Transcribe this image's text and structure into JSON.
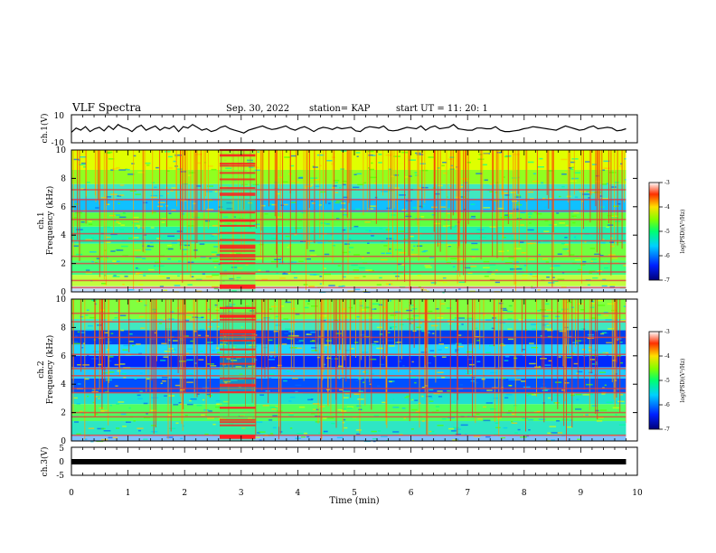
{
  "header": {
    "title": "VLF Spectra",
    "date": "Sep. 30, 2022",
    "station": "station= KAP",
    "start": "start  UT =   11: 20: 1"
  },
  "chart_data": [
    {
      "type": "line",
      "panel": "waveform-ch1",
      "ylabel": "ch.1(V)",
      "ylim": [
        -10,
        10
      ],
      "ytick_labels": [
        "10",
        "-10"
      ],
      "x_range_min": [
        0,
        9.8
      ],
      "series": [
        {
          "values": [
            -2.5,
            0.5,
            -1,
            1.5,
            -2,
            0,
            1,
            -1.5,
            2,
            -0.5,
            3,
            1,
            0,
            -2,
            1,
            2.5,
            -1,
            0.5,
            2,
            -1,
            1,
            0,
            2,
            -2,
            1.5,
            0.5,
            3,
            1,
            -1,
            0,
            -2,
            -1,
            1,
            2,
            0,
            -1,
            -2,
            -3,
            -1,
            0,
            1,
            2,
            0.5,
            -0.5,
            0,
            1,
            2,
            0,
            -1,
            0.5,
            1.5,
            0,
            -2,
            0,
            1,
            0.5,
            -0.5,
            1,
            0,
            0.5,
            1,
            -1.5,
            -2,
            0.5,
            1.5,
            1,
            0.5,
            2,
            -1,
            -1.5,
            -1,
            0,
            1,
            0.5,
            0,
            2,
            -1,
            1,
            2,
            0,
            0.5,
            1,
            3,
            0,
            -0.5,
            -1,
            -1,
            0.5,
            0.5,
            0,
            0,
            1.5,
            -1,
            -2,
            -2,
            -1.5,
            -1,
            0,
            0.5,
            1.5,
            1,
            0.5,
            0,
            -0.5,
            -1,
            0.5,
            2,
            1,
            0,
            -1,
            -0.5,
            1,
            2,
            0,
            0.5,
            1,
            0.5,
            -1.5,
            -1,
            0
          ]
        }
      ]
    },
    {
      "type": "heatmap",
      "panel": "spectrogram-ch1",
      "ylabel": "ch.1\nFrequency (kHz)",
      "ylim": [
        0,
        10
      ],
      "ytick_labels": [
        "0",
        "2",
        "4",
        "6",
        "8",
        "10"
      ],
      "colorbar": {
        "label": "log(PSD)(V²/Hz)",
        "range": [
          -7,
          -3
        ],
        "ticks": [
          "-3",
          "-4",
          "-5",
          "-6",
          "-7"
        ]
      },
      "strong_lines_khz": [
        0.3,
        0.8,
        1.4,
        2.0,
        2.5,
        3.6,
        4.1,
        5.1,
        5.7,
        6.5,
        7.2
      ],
      "burst_min": [
        2.62,
        3.25
      ]
    },
    {
      "type": "heatmap",
      "panel": "spectrogram-ch2",
      "ylabel": "ch.2\nFrequency (kHz)",
      "ylim": [
        0,
        10
      ],
      "ytick_labels": [
        "0",
        "2",
        "4",
        "6",
        "8",
        "10"
      ],
      "colorbar": {
        "label": "log(PSD)(V²/Hz)",
        "range": [
          -7,
          -3
        ],
        "ticks": [
          "-3",
          "-4",
          "-5",
          "-6",
          "-7"
        ]
      },
      "strong_lines_khz": [
        0.4,
        1.7,
        2.0,
        3.4,
        3.7,
        4.6,
        5.1,
        6.1,
        7.3,
        8.4,
        9.0
      ],
      "burst_min": [
        2.62,
        3.25
      ]
    },
    {
      "type": "line",
      "panel": "waveform-ch3",
      "ylabel": "ch.3(V)",
      "ylim": [
        -5,
        5
      ],
      "ytick_labels": [
        "5",
        "0",
        "-5"
      ],
      "x_range_min": [
        0,
        9.8
      ],
      "series": [
        {
          "values": [
            -1.2,
            -1.2
          ]
        }
      ]
    }
  ],
  "x_axis": {
    "label": "Time  (min)",
    "range": [
      0,
      10
    ],
    "tick_labels": [
      "0",
      "1",
      "2",
      "3",
      "4",
      "5",
      "6",
      "7",
      "8",
      "9",
      "10"
    ]
  },
  "colors": {
    "spectrum": [
      "#0000c8",
      "#0064ff",
      "#00c8ff",
      "#00ffa0",
      "#50ff00",
      "#dcff00",
      "#ffc800",
      "#ff5000",
      "#dc0000"
    ]
  }
}
